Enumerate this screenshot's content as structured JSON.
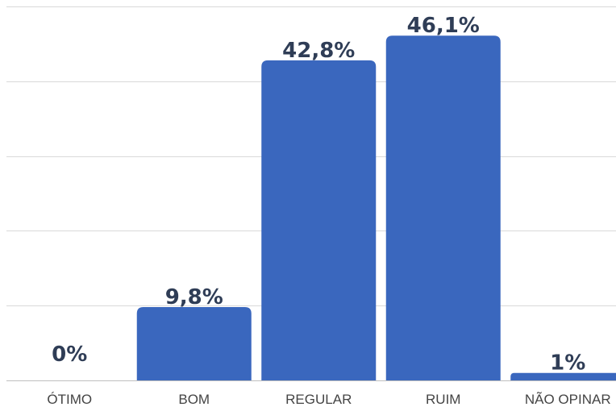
{
  "chart_data": {
    "type": "bar",
    "categories": [
      "ÓTIMO",
      "BOM",
      "REGULAR",
      "RUIM",
      "NÃO OPINAR"
    ],
    "values": [
      0,
      9.8,
      42.8,
      46.1,
      1
    ],
    "data_labels": [
      "0%",
      "9,8%",
      "42,8%",
      "46,1%",
      "1%"
    ],
    "title": "",
    "xlabel": "",
    "ylabel": "",
    "ylim": [
      0,
      50
    ],
    "grid": true,
    "legend": "none",
    "bar_color": "#3a67be",
    "label_color": "#2f3d56"
  }
}
